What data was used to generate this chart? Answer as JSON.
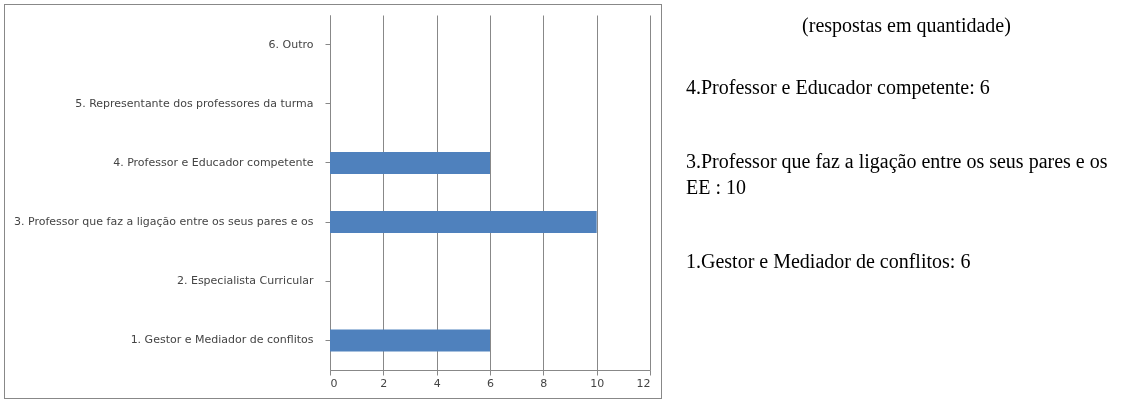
{
  "chart_data": {
    "type": "bar",
    "orientation": "horizontal",
    "categories": [
      "6. Outro",
      "5. Representante dos professores da turma",
      "4. Professor e Educador competente",
      "3. Professor que faz a ligação entre os seus pares e os",
      "2. Especialista Curricular",
      "1. Gestor e Mediador de conflitos"
    ],
    "values": [
      0,
      0,
      6,
      10,
      0,
      6
    ],
    "color": "#4f81bd",
    "xlim": [
      0,
      12
    ],
    "xticks": [
      0,
      2,
      4,
      6,
      8,
      10,
      12
    ],
    "grid": "x",
    "annotations": [
      "(respostas em quantidade)",
      "4.Professor e Educador competente:    6",
      "3.Professor que faz a ligação entre os seus pares e os EE :    10",
      "1.Gestor e Mediador de conflitos:    6"
    ]
  }
}
